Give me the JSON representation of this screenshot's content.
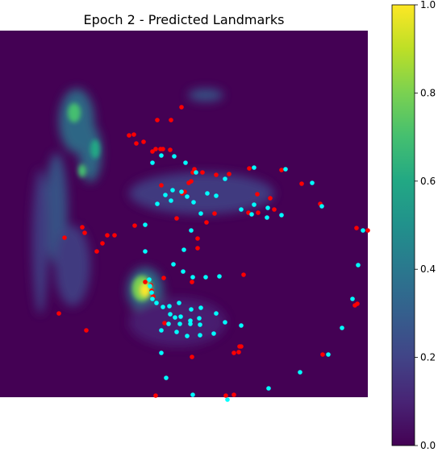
{
  "chart_data": {
    "type": "heatmap",
    "title": "Epoch 2 - Predicted Landmarks",
    "colorbar": {
      "colormap": "viridis",
      "range": [
        0.0,
        1.0
      ],
      "ticks": [
        "0.0",
        "0.2",
        "0.4",
        "0.6",
        "0.8",
        "1.0"
      ]
    },
    "axes_visible": false,
    "heatmap_hotspots": [
      {
        "region": "left vertical streaks",
        "value": 0.65
      },
      {
        "region": "central band",
        "value": 0.3
      },
      {
        "region": "lower-center spot",
        "value": 0.95
      }
    ],
    "series": [
      {
        "color": "#ff0000",
        "points": [
          [
            225,
            133
          ],
          [
            195,
            149
          ],
          [
            212,
            149
          ],
          [
            160,
            168
          ],
          [
            166,
            167
          ],
          [
            169,
            178
          ],
          [
            178,
            176
          ],
          [
            189,
            188
          ],
          [
            193,
            185
          ],
          [
            199,
            185
          ],
          [
            202,
            185
          ],
          [
            211,
            186
          ],
          [
            241,
            210
          ],
          [
            251,
            214
          ],
          [
            239,
            214
          ],
          [
            284,
            216
          ],
          [
            268,
            217
          ],
          [
            237,
            225
          ],
          [
            234,
            227
          ],
          [
            200,
            230
          ],
          [
            229,
            238
          ],
          [
            226,
            240
          ],
          [
            309,
            209
          ],
          [
            349,
            211
          ],
          [
            374,
            228
          ],
          [
            319,
            241
          ],
          [
            335,
            246
          ],
          [
            397,
            253
          ],
          [
            308,
            264
          ],
          [
            320,
            264
          ],
          [
            340,
            260
          ],
          [
            266,
            265
          ],
          [
            256,
            276
          ],
          [
            219,
            271
          ],
          [
            167,
            280
          ],
          [
            102,
            282
          ],
          [
            105,
            289
          ],
          [
            133,
            292
          ],
          [
            142,
            292
          ],
          [
            127,
            302
          ],
          [
            80,
            295
          ],
          [
            120,
            312
          ],
          [
            245,
            296
          ],
          [
            245,
            308
          ],
          [
            442,
            283
          ],
          [
            456,
            286
          ],
          [
            203,
            345
          ],
          [
            180,
            350
          ],
          [
            238,
            350
          ],
          [
            187,
            354
          ],
          [
            188,
            361
          ],
          [
            190,
            368
          ],
          [
            302,
            341
          ],
          [
            440,
            379
          ],
          [
            443,
            377
          ],
          [
            73,
            389
          ],
          [
            107,
            410
          ],
          [
            204,
            401
          ],
          [
            297,
            430
          ],
          [
            299,
            430
          ],
          [
            290,
            438
          ],
          [
            296,
            437
          ],
          [
            238,
            443
          ],
          [
            400,
            440
          ],
          [
            193,
            491
          ],
          [
            280,
            491
          ],
          [
            290,
            490
          ]
        ]
      },
      {
        "color": "#00ffff",
        "points": [
          [
            315,
            208
          ],
          [
            354,
            210
          ],
          [
            200,
            193
          ],
          [
            216,
            194
          ],
          [
            189,
            202
          ],
          [
            230,
            202
          ],
          [
            243,
            214
          ],
          [
            279,
            222
          ],
          [
            387,
            227
          ],
          [
            214,
            236
          ],
          [
            205,
            242
          ],
          [
            225,
            238
          ],
          [
            232,
            244
          ],
          [
            257,
            240
          ],
          [
            268,
            243
          ],
          [
            195,
            253
          ],
          [
            212,
            249
          ],
          [
            240,
            251
          ],
          [
            299,
            260
          ],
          [
            315,
            254
          ],
          [
            332,
            258
          ],
          [
            312,
            266
          ],
          [
            331,
            270
          ],
          [
            349,
            267
          ],
          [
            399,
            256
          ],
          [
            249,
            265
          ],
          [
            180,
            279
          ],
          [
            237,
            286
          ],
          [
            228,
            310
          ],
          [
            180,
            312
          ],
          [
            450,
            286
          ],
          [
            215,
            328
          ],
          [
            227,
            337
          ],
          [
            239,
            344
          ],
          [
            255,
            344
          ],
          [
            272,
            343
          ],
          [
            444,
            329
          ],
          [
            185,
            347
          ],
          [
            186,
            355
          ],
          [
            188,
            363
          ],
          [
            189,
            371
          ],
          [
            194,
            376
          ],
          [
            202,
            381
          ],
          [
            210,
            380
          ],
          [
            222,
            376
          ],
          [
            237,
            384
          ],
          [
            249,
            382
          ],
          [
            268,
            389
          ],
          [
            211,
            390
          ],
          [
            217,
            394
          ],
          [
            224,
            393
          ],
          [
            236,
            398
          ],
          [
            247,
            395
          ],
          [
            279,
            400
          ],
          [
            299,
            404
          ],
          [
            209,
            402
          ],
          [
            223,
            402
          ],
          [
            236,
            402
          ],
          [
            248,
            403
          ],
          [
            200,
            410
          ],
          [
            219,
            412
          ],
          [
            232,
            417
          ],
          [
            248,
            416
          ],
          [
            265,
            414
          ],
          [
            437,
            371
          ],
          [
            424,
            407
          ],
          [
            407,
            440
          ],
          [
            200,
            438
          ],
          [
            206,
            469
          ],
          [
            372,
            462
          ],
          [
            333,
            482
          ],
          [
            239,
            490
          ],
          [
            282,
            496
          ]
        ]
      }
    ]
  }
}
